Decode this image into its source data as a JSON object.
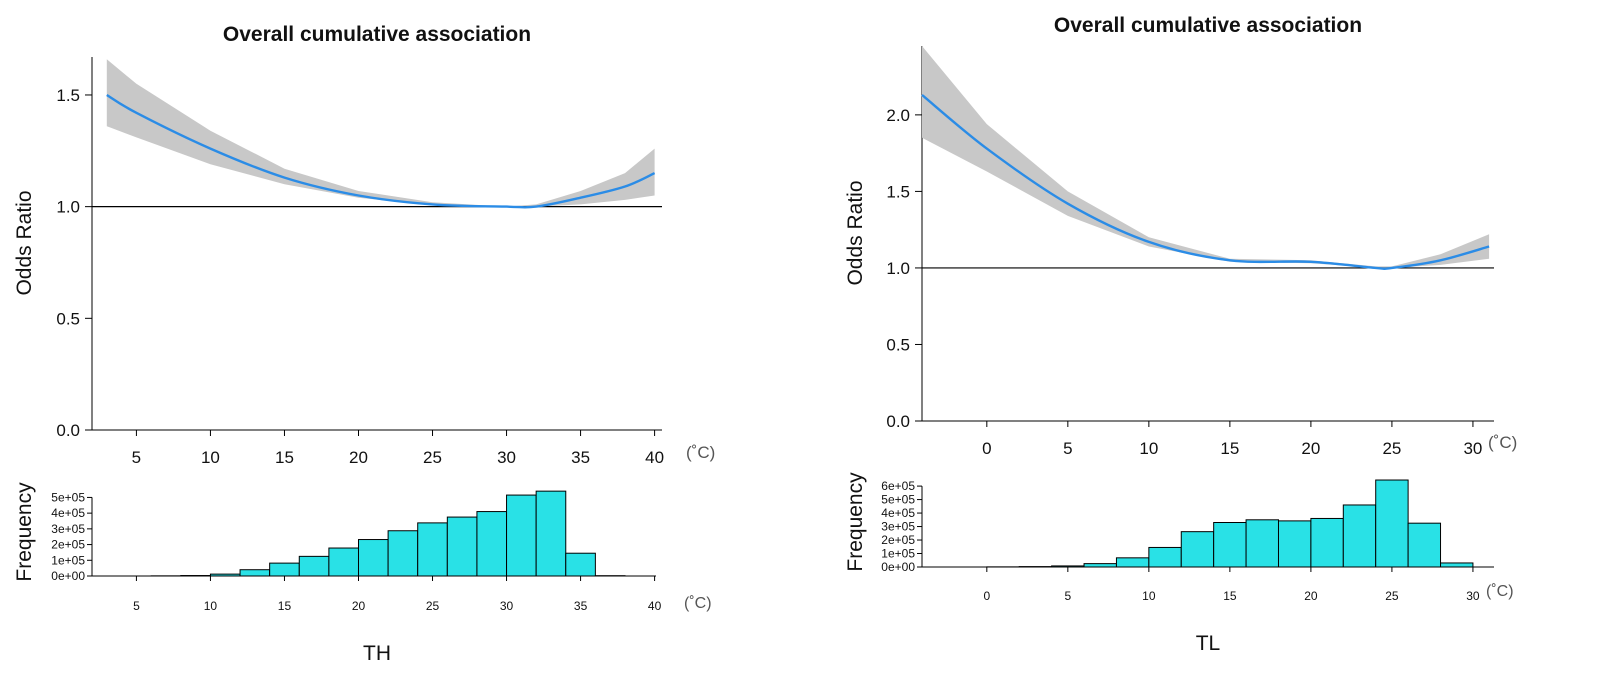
{
  "colors": {
    "curve": "#2b8ce6",
    "band": "#c8c8c8",
    "bar": "#29e1e6"
  },
  "chart_data": [
    {
      "type": "line",
      "title": "Overall cumulative association",
      "xlabel": "TH",
      "ylabel": "Odds Ratio",
      "unit": "(˚C)",
      "xlim": [
        2,
        40.5
      ],
      "ylim": [
        0,
        1.67
      ],
      "xticks": [
        "5",
        "10",
        "15",
        "20",
        "25",
        "30",
        "35",
        "40"
      ],
      "yticks": [
        "0.0",
        "0.5",
        "1.0",
        "1.5"
      ],
      "reference_line": 1.0,
      "series": [
        {
          "x": [
            3,
            5,
            10,
            15,
            20,
            25,
            30,
            32,
            35,
            38,
            40
          ],
          "y": [
            1.5,
            1.42,
            1.26,
            1.13,
            1.05,
            1.01,
            1.0,
            1.0,
            1.04,
            1.09,
            1.15
          ],
          "lower": [
            1.36,
            1.31,
            1.19,
            1.1,
            1.04,
            1.005,
            1.0,
            1.0,
            1.01,
            1.03,
            1.05
          ],
          "upper": [
            1.66,
            1.55,
            1.34,
            1.17,
            1.07,
            1.02,
            1.0,
            1.01,
            1.07,
            1.15,
            1.26
          ]
        }
      ],
      "histogram": {
        "ylabel": "Frequency",
        "ylim": [
          0,
          560000
        ],
        "yticks": [
          "0e+00",
          "1e+05",
          "2e+05",
          "3e+05",
          "4e+05",
          "5e+05"
        ],
        "xticks": [
          "5",
          "10",
          "15",
          "20",
          "25",
          "30",
          "35",
          "40"
        ],
        "bin_edges": [
          2,
          4,
          6,
          8,
          10,
          12,
          14,
          16,
          18,
          20,
          22,
          24,
          26,
          28,
          30,
          32,
          34,
          36,
          38
        ],
        "counts": [
          0,
          0,
          1000,
          3000,
          12000,
          40000,
          82000,
          125000,
          178000,
          232000,
          288000,
          338000,
          375000,
          410000,
          515000,
          540000,
          145000,
          2000
        ]
      }
    },
    {
      "type": "line",
      "title": "Overall cumulative association",
      "xlabel": "TL",
      "ylabel": "Odds Ratio",
      "unit": "(˚C)",
      "xlim": [
        -4,
        31.3
      ],
      "ylim": [
        0,
        2.45
      ],
      "xticks": [
        "0",
        "5",
        "10",
        "15",
        "20",
        "25",
        "30"
      ],
      "yticks": [
        "0.0",
        "0.5",
        "1.0",
        "1.5",
        "2.0"
      ],
      "reference_line": 1.0,
      "series": [
        {
          "x": [
            -4,
            0,
            5,
            10,
            15,
            20,
            24,
            25,
            28,
            31
          ],
          "y": [
            2.13,
            1.78,
            1.42,
            1.17,
            1.05,
            1.04,
            1.0,
            1.0,
            1.05,
            1.14
          ],
          "lower": [
            1.85,
            1.63,
            1.34,
            1.14,
            1.04,
            1.03,
            1.0,
            1.0,
            1.02,
            1.06
          ],
          "upper": [
            2.45,
            1.94,
            1.5,
            1.2,
            1.06,
            1.05,
            1.01,
            1.01,
            1.09,
            1.22
          ]
        }
      ],
      "histogram": {
        "ylabel": "Frequency",
        "ylim": [
          0,
          660000
        ],
        "yticks": [
          "0e+00",
          "1e+05",
          "2e+05",
          "3e+05",
          "4e+05",
          "5e+05",
          "6e+05"
        ],
        "xticks": [
          "0",
          "5",
          "10",
          "15",
          "20",
          "25",
          "30"
        ],
        "bin_edges": [
          -2,
          0,
          2,
          4,
          6,
          8,
          10,
          12,
          14,
          16,
          18,
          20,
          22,
          24,
          26,
          28,
          30
        ],
        "counts": [
          0,
          1000,
          3000,
          8000,
          25000,
          68000,
          145000,
          262000,
          330000,
          350000,
          342000,
          360000,
          460000,
          645000,
          325000,
          30000
        ]
      }
    }
  ]
}
